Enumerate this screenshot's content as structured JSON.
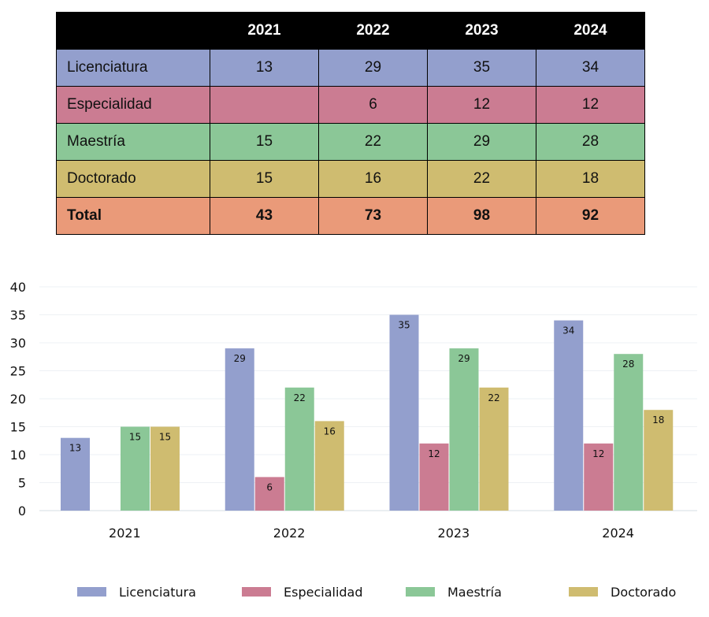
{
  "table": {
    "headers": [
      "",
      "2021",
      "2022",
      "2023",
      "2024"
    ],
    "rows": [
      {
        "label": "Licenciatura",
        "values": [
          "13",
          "29",
          "35",
          "34"
        ],
        "color": "#939fcd"
      },
      {
        "label": "Especialidad",
        "values": [
          "",
          "6",
          "12",
          "12"
        ],
        "color": "#cb7c92"
      },
      {
        "label": "Maestría",
        "values": [
          "15",
          "22",
          "29",
          "28"
        ],
        "color": "#8bc797"
      },
      {
        "label": "Doctorado",
        "values": [
          "15",
          "16",
          "22",
          "18"
        ],
        "color": "#cfbc70"
      },
      {
        "label": "Total",
        "values": [
          "43",
          "73",
          "98",
          "92"
        ],
        "color": "#ea9a79"
      }
    ]
  },
  "chart_data": {
    "type": "bar",
    "categories": [
      "2021",
      "2022",
      "2023",
      "2024"
    ],
    "series": [
      {
        "name": "Licenciatura",
        "values": [
          13,
          29,
          35,
          34
        ],
        "color": "#939fcd"
      },
      {
        "name": "Especialidad",
        "values": [
          null,
          6,
          12,
          12
        ],
        "color": "#cb7c92"
      },
      {
        "name": "Maestría",
        "values": [
          15,
          22,
          29,
          28
        ],
        "color": "#8bc797"
      },
      {
        "name": "Doctorado",
        "values": [
          15,
          16,
          22,
          18
        ],
        "color": "#cfbc70"
      }
    ],
    "ylim": [
      0,
      40
    ],
    "yticks": [
      "0",
      "5",
      "10",
      "15",
      "20",
      "25",
      "30",
      "35",
      "40"
    ],
    "legend_position": "bottom",
    "grid": true,
    "data_labels": true
  }
}
